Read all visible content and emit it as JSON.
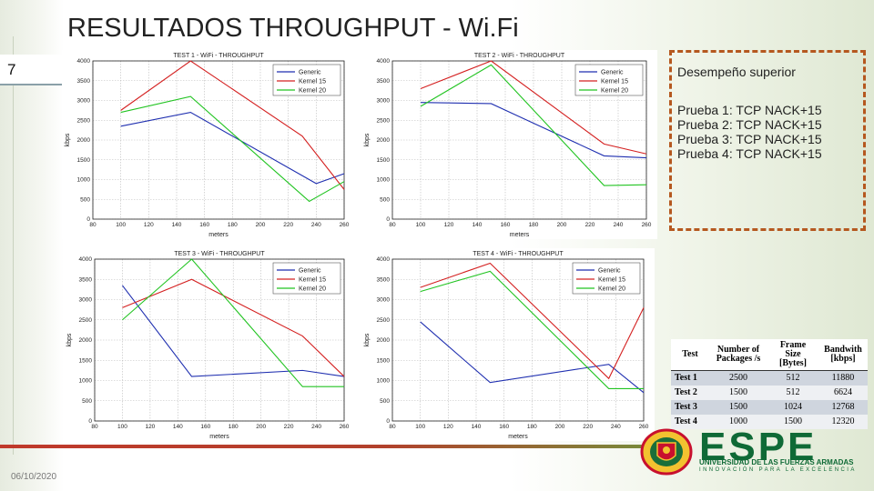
{
  "slide": {
    "title": "RESULTADOS THROUGHPUT - Wi.Fi",
    "number": "7",
    "date": "06/10/2020"
  },
  "side_box": {
    "heading": "Desempeño superior",
    "lines": [
      "Prueba 1: TCP NACK+15",
      "Prueba 2: TCP NACK+15",
      "Prueba 3: TCP NACK+15",
      "Prueba 4: TCP NACK+15"
    ]
  },
  "table": {
    "headers": [
      "Test",
      "Number of Packages /s",
      "Frame Size [Bytes]",
      "Bandwith [kbps]"
    ],
    "rows": [
      [
        "Test 1",
        "2500",
        "512",
        "11880"
      ],
      [
        "Test 2",
        "1500",
        "512",
        "6624"
      ],
      [
        "Test 3",
        "1500",
        "1024",
        "12768"
      ],
      [
        "Test 4",
        "1000",
        "1500",
        "12320"
      ]
    ]
  },
  "logo": {
    "name": "ESPE",
    "subtitle": "UNIVERSIDAD DE LAS FUERZAS ARMADAS",
    "tagline": "INNOVACIÓN PARA LA EXCELENCIA"
  },
  "colors": {
    "generic": "#1f2fb0",
    "kernel15": "#d42020",
    "kernel20": "#22c422",
    "accent": "#b5581f",
    "brand": "#0f6a36"
  },
  "chart_data": [
    {
      "type": "line",
      "title": "TEST 1 - WiFi - THROUGHPUT",
      "xlabel": "meters",
      "ylabel": "kbps",
      "x": [
        100,
        120,
        140,
        160,
        180,
        200,
        220,
        240,
        260
      ],
      "xlim": [
        80,
        260
      ],
      "ylim": [
        0,
        4000
      ],
      "xticks": [
        "80",
        "100",
        "120",
        "140",
        "160",
        "180",
        "200",
        "220",
        "240",
        "260"
      ],
      "yticks": [
        "0",
        "500",
        "1000",
        "1500",
        "2000",
        "2500",
        "3000",
        "3500",
        "4000"
      ],
      "legend": "top-right",
      "series": [
        {
          "name": "Generic",
          "color": "#1f2fb0",
          "points": [
            [
              100,
              2350
            ],
            [
              150,
              2700
            ],
            [
              240,
              900
            ],
            [
              260,
              1150
            ]
          ]
        },
        {
          "name": "Kernel 15",
          "color": "#d42020",
          "points": [
            [
              100,
              2750
            ],
            [
              150,
              4000
            ],
            [
              230,
              2100
            ],
            [
              260,
              750
            ]
          ]
        },
        {
          "name": "Kernel 20",
          "color": "#22c422",
          "points": [
            [
              100,
              2700
            ],
            [
              150,
              3100
            ],
            [
              235,
              450
            ],
            [
              260,
              950
            ]
          ]
        }
      ]
    },
    {
      "type": "line",
      "title": "TEST 2 - WiFi - THROUGHPUT",
      "xlabel": "meters",
      "ylabel": "kbps",
      "x": [
        100,
        120,
        140,
        160,
        180,
        200,
        220,
        240,
        260
      ],
      "xlim": [
        80,
        260
      ],
      "ylim": [
        0,
        4000
      ],
      "xticks": [
        "80",
        "100",
        "120",
        "140",
        "160",
        "180",
        "200",
        "220",
        "240",
        "260"
      ],
      "yticks": [
        "0",
        "500",
        "1000",
        "1500",
        "2000",
        "2500",
        "3000",
        "3500",
        "4000"
      ],
      "legend": "top-right",
      "series": [
        {
          "name": "Generic",
          "color": "#1f2fb0",
          "points": [
            [
              100,
              2950
            ],
            [
              150,
              2920
            ],
            [
              230,
              1600
            ],
            [
              260,
              1550
            ]
          ]
        },
        {
          "name": "Kernel 15",
          "color": "#d42020",
          "points": [
            [
              100,
              3300
            ],
            [
              150,
              4000
            ],
            [
              230,
              1900
            ],
            [
              260,
              1650
            ]
          ]
        },
        {
          "name": "Kernel 20",
          "color": "#22c422",
          "points": [
            [
              100,
              2850
            ],
            [
              150,
              3900
            ],
            [
              230,
              850
            ],
            [
              260,
              870
            ]
          ]
        }
      ]
    },
    {
      "type": "line",
      "title": "TEST 3 - WiFi - THROUGHPUT",
      "xlabel": "meters",
      "ylabel": "kbps",
      "x": [
        100,
        120,
        140,
        160,
        180,
        200,
        220,
        240,
        260
      ],
      "xlim": [
        80,
        260
      ],
      "ylim": [
        0,
        4000
      ],
      "xticks": [
        "80",
        "100",
        "120",
        "140",
        "160",
        "180",
        "200",
        "220",
        "240",
        "260"
      ],
      "yticks": [
        "0",
        "500",
        "1000",
        "1500",
        "2000",
        "2500",
        "3000",
        "3500",
        "4000"
      ],
      "legend": "top-right",
      "series": [
        {
          "name": "Generic",
          "color": "#1f2fb0",
          "points": [
            [
              100,
              3350
            ],
            [
              150,
              1100
            ],
            [
              230,
              1250
            ],
            [
              260,
              1100
            ]
          ]
        },
        {
          "name": "Kernel 15",
          "color": "#d42020",
          "points": [
            [
              100,
              2800
            ],
            [
              150,
              3500
            ],
            [
              230,
              2100
            ],
            [
              260,
              1100
            ]
          ]
        },
        {
          "name": "Kernel 20",
          "color": "#22c422",
          "points": [
            [
              100,
              2500
            ],
            [
              150,
              4000
            ],
            [
              230,
              850
            ],
            [
              260,
              850
            ]
          ]
        }
      ]
    },
    {
      "type": "line",
      "title": "TEST 4 - WiFi - THROUGHPUT",
      "xlabel": "meters",
      "ylabel": "kbps",
      "x": [
        100,
        120,
        140,
        160,
        180,
        200,
        220,
        240,
        260
      ],
      "xlim": [
        80,
        260
      ],
      "ylim": [
        0,
        4000
      ],
      "xticks": [
        "80",
        "100",
        "120",
        "140",
        "160",
        "180",
        "200",
        "220",
        "240",
        "260"
      ],
      "yticks": [
        "0",
        "500",
        "1000",
        "1500",
        "2000",
        "2500",
        "3000",
        "3500",
        "4000"
      ],
      "legend": "top-right",
      "series": [
        {
          "name": "Generic",
          "color": "#1f2fb0",
          "points": [
            [
              100,
              2450
            ],
            [
              150,
              950
            ],
            [
              235,
              1400
            ],
            [
              260,
              700
            ]
          ]
        },
        {
          "name": "Kernel 15",
          "color": "#d42020",
          "points": [
            [
              100,
              3300
            ],
            [
              150,
              3900
            ],
            [
              235,
              1050
            ],
            [
              260,
              2800
            ]
          ]
        },
        {
          "name": "Kernel 20",
          "color": "#22c422",
          "points": [
            [
              100,
              3200
            ],
            [
              150,
              3700
            ],
            [
              235,
              800
            ],
            [
              260,
              800
            ]
          ]
        }
      ]
    }
  ]
}
